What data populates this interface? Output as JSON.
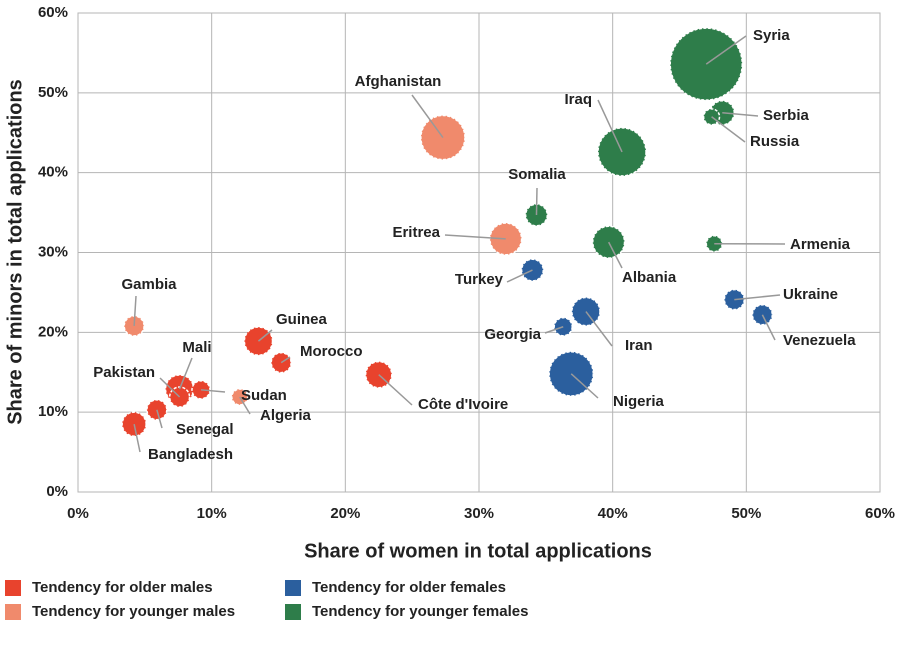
{
  "chart_data": {
    "type": "bubble",
    "x_label": "Share of women in total applications",
    "y_label": "Share of minors in total applications",
    "xlim": [
      0,
      60
    ],
    "ylim": [
      0,
      60
    ],
    "xticks": [
      {
        "value": 0,
        "label": "0%"
      },
      {
        "value": 10,
        "label": "10%"
      },
      {
        "value": 20,
        "label": "20%"
      },
      {
        "value": 30,
        "label": "30%"
      },
      {
        "value": 40,
        "label": "40%"
      },
      {
        "value": 50,
        "label": "50%"
      },
      {
        "value": 60,
        "label": "60%"
      }
    ],
    "yticks": [
      {
        "value": 0,
        "label": "0%"
      },
      {
        "value": 10,
        "label": "10%"
      },
      {
        "value": 20,
        "label": "20%"
      },
      {
        "value": 30,
        "label": "30%"
      },
      {
        "value": 40,
        "label": "40%"
      },
      {
        "value": 50,
        "label": "50%"
      },
      {
        "value": 60,
        "label": "60%"
      }
    ],
    "grid": true,
    "series": [
      {
        "name": "Tendency for older males",
        "color": "#e8432d",
        "labels": [
          "Guinea",
          "Morocco",
          "Côte d'Ivoire",
          "Mali",
          "Pakistan",
          "Sudan",
          "Senegal",
          "Bangladesh"
        ],
        "x": [
          13.5,
          15.2,
          22.5,
          7.6,
          7.6,
          9.2,
          5.9,
          4.2
        ],
        "values": [
          18.9,
          16.2,
          14.7,
          12.9,
          11.9,
          12.8,
          10.3,
          8.5
        ],
        "sizes": [
          22,
          11,
          19,
          22,
          11,
          9,
          11,
          16
        ]
      },
      {
        "name": "Tendency for younger males",
        "color": "#f08a6c",
        "labels": [
          "Afghanistan",
          "Eritrea",
          "Gambia",
          "Algeria"
        ],
        "x": [
          27.3,
          32.0,
          4.2,
          12.1
        ],
        "values": [
          44.4,
          31.7,
          20.8,
          11.9
        ],
        "sizes": [
          54,
          28,
          11,
          7
        ]
      },
      {
        "name": "Tendency for older females",
        "color": "#2b5f9e",
        "labels": [
          "Turkey",
          "Georgia",
          "Iran",
          "Nigeria",
          "Ukraine",
          "Venezuela"
        ],
        "x": [
          34.0,
          36.3,
          38.0,
          36.9,
          49.1,
          51.2
        ],
        "values": [
          27.8,
          20.7,
          22.6,
          14.8,
          24.1,
          22.2
        ],
        "sizes": [
          13,
          9,
          22,
          54,
          11,
          11
        ]
      },
      {
        "name": "Tendency for younger females",
        "color": "#2e7d4a",
        "labels": [
          "Syria",
          "Iraq",
          "Serbia",
          "Russia",
          "Somalia",
          "Albania",
          "Armenia"
        ],
        "x": [
          47.0,
          40.7,
          48.2,
          47.4,
          34.3,
          39.7,
          47.6
        ],
        "values": [
          53.6,
          42.6,
          47.5,
          47.0,
          34.7,
          31.3,
          31.1
        ],
        "sizes": [
          144,
          64,
          16,
          7,
          13,
          28,
          7
        ]
      }
    ]
  }
}
